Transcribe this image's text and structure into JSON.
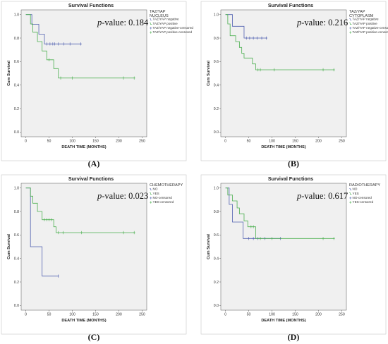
{
  "chart_data": [
    {
      "type": "line",
      "letter": "(A)",
      "title": "Survival Functions",
      "xlabel": "DEATH TIME (MONTHS)",
      "ylabel": "Cum Survival",
      "xlim": [
        -10,
        260
      ],
      "ylim": [
        -0.04,
        1.04
      ],
      "xticks": [
        0,
        50,
        100,
        150,
        200,
        250
      ],
      "yticks": [
        0.0,
        0.2,
        0.4,
        0.6,
        0.8,
        1.0
      ],
      "pvalue_label": "p",
      "pvalue_text": "-value: 0.184",
      "legend": {
        "title": "TAZ/YAP NUCLEUS",
        "items": [
          "TAZ/YAP negative",
          "TAZ/YAP positive",
          "TAZ/YAP negative-censored",
          "TAZ/YAP positive-censored"
        ]
      },
      "colors": [
        "#5060b0",
        "#4caf50"
      ],
      "series": [
        {
          "steps": [
            [
              0,
              1.0
            ],
            [
              13,
              1.0
            ],
            [
              13,
              0.917
            ],
            [
              28,
              0.917
            ],
            [
              28,
              0.833
            ],
            [
              40,
              0.833
            ],
            [
              40,
              0.75
            ],
            [
              120,
              0.75
            ]
          ],
          "censored": [
            [
              45,
              0.75
            ],
            [
              52,
              0.75
            ],
            [
              58,
              0.75
            ],
            [
              62,
              0.75
            ],
            [
              70,
              0.75
            ],
            [
              82,
              0.75
            ],
            [
              95,
              0.75
            ],
            [
              118,
              0.75
            ]
          ]
        },
        {
          "steps": [
            [
              0,
              1.0
            ],
            [
              10,
              1.0
            ],
            [
              10,
              0.92
            ],
            [
              15,
              0.92
            ],
            [
              15,
              0.85
            ],
            [
              25,
              0.85
            ],
            [
              25,
              0.77
            ],
            [
              35,
              0.77
            ],
            [
              35,
              0.69
            ],
            [
              45,
              0.69
            ],
            [
              45,
              0.615
            ],
            [
              60,
              0.615
            ],
            [
              60,
              0.54
            ],
            [
              70,
              0.54
            ],
            [
              70,
              0.46
            ],
            [
              235,
              0.46
            ]
          ],
          "censored": [
            [
              50,
              0.615
            ],
            [
              75,
              0.46
            ],
            [
              100,
              0.46
            ],
            [
              210,
              0.46
            ],
            [
              233,
              0.46
            ]
          ]
        }
      ]
    },
    {
      "type": "line",
      "letter": "(B)",
      "title": "Survival Functions",
      "xlabel": "DEATH TIME (MONTHS)",
      "ylabel": "Cum Survival",
      "xlim": [
        -10,
        260
      ],
      "ylim": [
        -0.04,
        1.04
      ],
      "xticks": [
        0,
        50,
        100,
        150,
        200,
        250
      ],
      "yticks": [
        0.0,
        0.2,
        0.4,
        0.6,
        0.8,
        1.0
      ],
      "pvalue_label": "p",
      "pvalue_text": "-value: 0.216",
      "legend": {
        "title": "TAZ/YAP CYTOPLASM",
        "items": [
          "TAZ/YAP negative",
          "TAZ/YAP positive",
          "TAZ/YAP negative-censored",
          "TAZ/YAP positive-censored"
        ]
      },
      "colors": [
        "#5060b0",
        "#4caf50"
      ],
      "series": [
        {
          "steps": [
            [
              0,
              1.0
            ],
            [
              15,
              1.0
            ],
            [
              15,
              0.9
            ],
            [
              40,
              0.9
            ],
            [
              40,
              0.8
            ],
            [
              90,
              0.8
            ]
          ],
          "censored": [
            [
              45,
              0.8
            ],
            [
              52,
              0.8
            ],
            [
              60,
              0.8
            ],
            [
              68,
              0.8
            ],
            [
              78,
              0.8
            ],
            [
              88,
              0.8
            ]
          ]
        },
        {
          "steps": [
            [
              0,
              1.0
            ],
            [
              5,
              1.0
            ],
            [
              5,
              0.92
            ],
            [
              10,
              0.92
            ],
            [
              10,
              0.82
            ],
            [
              22,
              0.82
            ],
            [
              22,
              0.77
            ],
            [
              30,
              0.77
            ],
            [
              30,
              0.72
            ],
            [
              35,
              0.72
            ],
            [
              35,
              0.67
            ],
            [
              40,
              0.67
            ],
            [
              40,
              0.63
            ],
            [
              58,
              0.63
            ],
            [
              58,
              0.58
            ],
            [
              65,
              0.58
            ],
            [
              65,
              0.53
            ],
            [
              235,
              0.53
            ]
          ],
          "censored": [
            [
              70,
              0.53
            ],
            [
              75,
              0.53
            ],
            [
              105,
              0.53
            ],
            [
              210,
              0.53
            ],
            [
              233,
              0.53
            ]
          ]
        }
      ]
    },
    {
      "type": "line",
      "letter": "(C)",
      "title": "Survival Functions",
      "xlabel": "DEATH TIME (MONTHS)",
      "ylabel": "Cum Survival",
      "xlim": [
        -10,
        260
      ],
      "ylim": [
        -0.04,
        1.04
      ],
      "xticks": [
        0,
        50,
        100,
        150,
        200,
        250
      ],
      "yticks": [
        0.0,
        0.2,
        0.4,
        0.6,
        0.8,
        1.0
      ],
      "pvalue_label": "p",
      "pvalue_text": "-value: 0.023",
      "legend": {
        "title": "CHEMOTHERAPY",
        "items": [
          "NO",
          "YES",
          "NO-censored",
          "YES-censored"
        ]
      },
      "colors": [
        "#5060b0",
        "#4caf50"
      ],
      "series": [
        {
          "steps": [
            [
              0,
              1.0
            ],
            [
              10,
              1.0
            ],
            [
              10,
              0.5
            ],
            [
              35,
              0.5
            ],
            [
              35,
              0.25
            ],
            [
              70,
              0.25
            ]
          ],
          "censored": [
            [
              70,
              0.25
            ]
          ]
        },
        {
          "steps": [
            [
              0,
              1.0
            ],
            [
              10,
              1.0
            ],
            [
              10,
              0.93
            ],
            [
              15,
              0.93
            ],
            [
              15,
              0.87
            ],
            [
              25,
              0.87
            ],
            [
              25,
              0.8
            ],
            [
              35,
              0.8
            ],
            [
              35,
              0.73
            ],
            [
              60,
              0.73
            ],
            [
              60,
              0.67
            ],
            [
              65,
              0.67
            ],
            [
              65,
              0.62
            ],
            [
              235,
              0.62
            ]
          ],
          "censored": [
            [
              40,
              0.73
            ],
            [
              45,
              0.73
            ],
            [
              50,
              0.73
            ],
            [
              55,
              0.73
            ],
            [
              70,
              0.62
            ],
            [
              80,
              0.62
            ],
            [
              120,
              0.62
            ],
            [
              210,
              0.62
            ],
            [
              233,
              0.62
            ]
          ]
        }
      ]
    },
    {
      "type": "line",
      "letter": "(D)",
      "title": "Survival Functions",
      "xlabel": "DEATH TIME (MONTHS)",
      "ylabel": "Cum Survival",
      "xlim": [
        -10,
        260
      ],
      "ylim": [
        -0.04,
        1.04
      ],
      "xticks": [
        0,
        50,
        100,
        150,
        200,
        250
      ],
      "yticks": [
        0.0,
        0.2,
        0.4,
        0.6,
        0.8,
        1.0
      ],
      "pvalue_label": "p",
      "pvalue_text": "-value: 0.617",
      "legend": {
        "title": "RADIOTHERAPY",
        "items": [
          "NO",
          "YES",
          "NO-censored",
          "YES-censored"
        ]
      },
      "colors": [
        "#5060b0",
        "#4caf50"
      ],
      "series": [
        {
          "steps": [
            [
              0,
              1.0
            ],
            [
              8,
              1.0
            ],
            [
              8,
              0.86
            ],
            [
              15,
              0.86
            ],
            [
              15,
              0.71
            ],
            [
              38,
              0.71
            ],
            [
              38,
              0.57
            ],
            [
              120,
              0.57
            ]
          ],
          "censored": [
            [
              50,
              0.57
            ],
            [
              60,
              0.57
            ],
            [
              70,
              0.57
            ],
            [
              85,
              0.57
            ],
            [
              118,
              0.57
            ]
          ]
        },
        {
          "steps": [
            [
              0,
              1.0
            ],
            [
              5,
              1.0
            ],
            [
              5,
              0.94
            ],
            [
              15,
              0.94
            ],
            [
              15,
              0.89
            ],
            [
              25,
              0.89
            ],
            [
              25,
              0.83
            ],
            [
              30,
              0.83
            ],
            [
              30,
              0.78
            ],
            [
              40,
              0.78
            ],
            [
              40,
              0.72
            ],
            [
              48,
              0.72
            ],
            [
              48,
              0.67
            ],
            [
              65,
              0.67
            ],
            [
              65,
              0.57
            ],
            [
              235,
              0.57
            ]
          ],
          "censored": [
            [
              55,
              0.67
            ],
            [
              60,
              0.67
            ],
            [
              75,
              0.57
            ],
            [
              100,
              0.57
            ],
            [
              210,
              0.57
            ],
            [
              233,
              0.57
            ]
          ]
        }
      ]
    }
  ]
}
